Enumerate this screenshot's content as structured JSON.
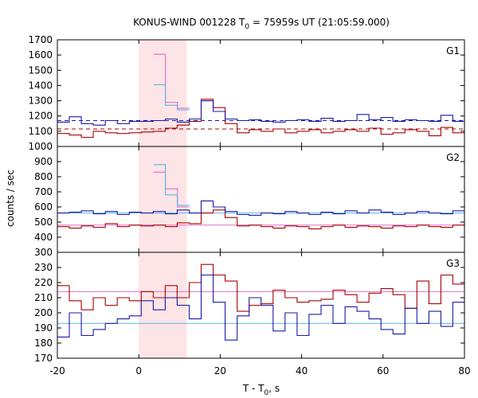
{
  "chart_data": {
    "type": "line",
    "title": {
      "main": "KONUS-WIND 001228 T",
      "sub": "0",
      "rest": " = 75959s UT (21:05:59.000)"
    },
    "xlabel": {
      "main": "T - T",
      "sub": "0",
      "rest": ", s"
    },
    "ylabel": "counts / sec",
    "xlim": [
      -20,
      80
    ],
    "xticks": [
      "-20",
      "0",
      "20",
      "40",
      "60",
      "80"
    ],
    "highlight_interval": [
      0,
      11.8
    ],
    "colors": {
      "dark_red": "#aa0000",
      "pink": "#e070c8",
      "blue": "#1a1aaa",
      "light_blue": "#5ab4e6",
      "highlight": "#fde4e6"
    },
    "panels": [
      {
        "name": "G1",
        "ylim": [
          1000,
          1700
        ],
        "yticks": [
          "1000",
          "1100",
          "1200",
          "1300",
          "1400",
          "1500",
          "1600",
          "1700"
        ],
        "series": [
          {
            "x_start": -20,
            "step": 2.944,
            "color": "#aa0000",
            "values": [
              1085,
              1075,
              1060,
              1100,
              1090,
              1085,
              1090,
              1095,
              1100,
              1120,
              1140,
              1165,
              1310,
              1255,
              1150,
              1090,
              1110,
              1100,
              1115,
              1090,
              1100,
              1110,
              1090,
              1100,
              1110,
              1100,
              1120,
              1080,
              1090,
              1110,
              1100,
              1070,
              1125,
              1090,
              1115
            ]
          },
          {
            "x_start": -20,
            "step": 2.944,
            "color": "#1a1aaa",
            "values": [
              1160,
              1195,
              1150,
              1140,
              1170,
              1150,
              1165,
              1165,
              1170,
              1180,
              1160,
              1180,
              1300,
              1230,
              1180,
              1170,
              1175,
              1165,
              1160,
              1170,
              1175,
              1165,
              1185,
              1165,
              1170,
              1210,
              1175,
              1190,
              1165,
              1175,
              1170,
              1165,
              1205,
              1165,
              1195
            ]
          },
          {
            "x_start": 3.6,
            "step": 2.944,
            "color": "#e070c8",
            "values": [
              1605,
              1290,
              1250
            ]
          },
          {
            "x_start": 3.6,
            "step": 2.944,
            "color": "#5ab4e6",
            "values": [
              1405,
              1270,
              1240
            ]
          }
        ],
        "baselines": [
          {
            "value": 1115,
            "color": "#aa0000",
            "dashed": true
          },
          {
            "value": 1170,
            "color": "#1a1aaa",
            "dashed": true
          }
        ]
      },
      {
        "name": "G2",
        "ylim": [
          300,
          1000
        ],
        "yticks": [
          "300",
          "400",
          "500",
          "600",
          "700",
          "800",
          "900"
        ],
        "series": [
          {
            "x_start": -20,
            "step": 2.944,
            "color": "#aa0000",
            "values": [
              470,
              460,
              475,
              465,
              490,
              470,
              480,
              475,
              480,
              470,
              495,
              490,
              560,
              580,
              530,
              475,
              480,
              470,
              460,
              475,
              470,
              455,
              470,
              480,
              465,
              475,
              470,
              460,
              475,
              470,
              480,
              470,
              465,
              480,
              470
            ]
          },
          {
            "x_start": -20,
            "step": 2.944,
            "color": "#1a1aaa",
            "values": [
              560,
              565,
              575,
              555,
              570,
              550,
              565,
              560,
              570,
              555,
              580,
              560,
              640,
              600,
              570,
              550,
              545,
              560,
              555,
              570,
              560,
              550,
              565,
              555,
              575,
              560,
              580,
              565,
              550,
              560,
              570,
              560,
              555,
              575,
              550
            ]
          },
          {
            "x_start": 3.6,
            "step": 2.944,
            "color": "#e070c8",
            "values": [
              830,
              720,
              600
            ]
          },
          {
            "x_start": 3.6,
            "step": 2.944,
            "color": "#5ab4e6",
            "values": [
              880,
              680,
              610
            ]
          }
        ],
        "baselines": [
          {
            "value": 480,
            "color": "#e070c8",
            "dashed": false
          },
          {
            "value": 560,
            "color": "#5ab4e6",
            "dashed": false
          }
        ]
      },
      {
        "name": "G3",
        "ylim": [
          170,
          240
        ],
        "yticks": [
          "170",
          "180",
          "190",
          "200",
          "210",
          "220",
          "230"
        ],
        "series": [
          {
            "x_start": -20,
            "step": 2.944,
            "color": "#aa0000",
            "values": [
              218,
              208,
              202,
              210,
              205,
              210,
              208,
              214,
              210,
              218,
              210,
              220,
              232,
              225,
              221,
              201,
              205,
              206,
              215,
              210,
              207,
              208,
              209,
              215,
              212,
              207,
              213,
              216,
              212,
              203,
              221,
              206,
              225,
              219,
              197
            ]
          },
          {
            "x_start": -20,
            "step": 2.944,
            "color": "#1a1aaa",
            "values": [
              184,
              200,
              185,
              189,
              193,
              196,
              198,
              208,
              202,
              210,
              205,
              196,
              225,
              207,
              182,
              198,
              210,
              205,
              188,
              200,
              185,
              199,
              205,
              193,
              204,
              201,
              196,
              189,
              186,
              203,
              193,
              201,
              191,
              207,
              189
            ]
          }
        ],
        "baselines": [
          {
            "value": 214,
            "color": "#e070c8",
            "dashed": false
          },
          {
            "value": 193,
            "color": "#5ab4e6",
            "dashed": false
          }
        ]
      }
    ]
  }
}
